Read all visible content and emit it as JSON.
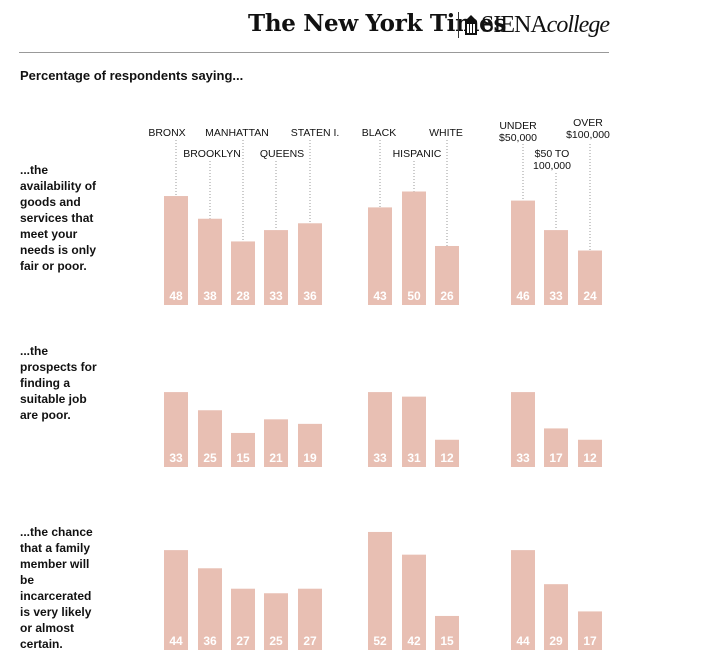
{
  "header": {
    "nyt_logo": "The New York Times",
    "siena_logo": "SIENA",
    "siena_college": "college",
    "seal_icon": "college-building-icon"
  },
  "subtitle": "Percentage of respondents saying...",
  "groups": [
    {
      "name": "borough",
      "labels": [
        "BRONX",
        "BROOKLYN",
        "MANHATTAN",
        "QUEENS",
        "STATEN I."
      ]
    },
    {
      "name": "race",
      "labels": [
        "BLACK",
        "HISPANIC",
        "WHITE"
      ]
    },
    {
      "name": "income",
      "labels": [
        "UNDER $50,000",
        "$50 TO 100,000",
        "OVER $100,000"
      ]
    }
  ],
  "colors": {
    "bar": "#e8bfb3",
    "value_text": "#ffffff",
    "leader": "#999999"
  },
  "chart_data": {
    "type": "bar",
    "categories": [
      "BRONX",
      "BROOKLYN",
      "MANHATTAN",
      "QUEENS",
      "STATEN I.",
      "BLACK",
      "HISPANIC",
      "WHITE",
      "UNDER $50,000",
      "$50 TO 100,000",
      "OVER $100,000"
    ],
    "rows": [
      {
        "question": "...the availability of goods and services that meet your needs is only fair or poor.",
        "values": [
          48,
          38,
          28,
          33,
          36,
          43,
          50,
          26,
          46,
          33,
          24
        ]
      },
      {
        "question": "...the prospects for finding a suitable job are poor.",
        "values": [
          33,
          25,
          15,
          21,
          19,
          33,
          31,
          12,
          33,
          17,
          12
        ]
      },
      {
        "question": "...the chance that a family member will be incarcerated is very likely or almost certain.",
        "values": [
          44,
          36,
          27,
          25,
          27,
          52,
          42,
          15,
          44,
          29,
          17
        ]
      }
    ]
  }
}
